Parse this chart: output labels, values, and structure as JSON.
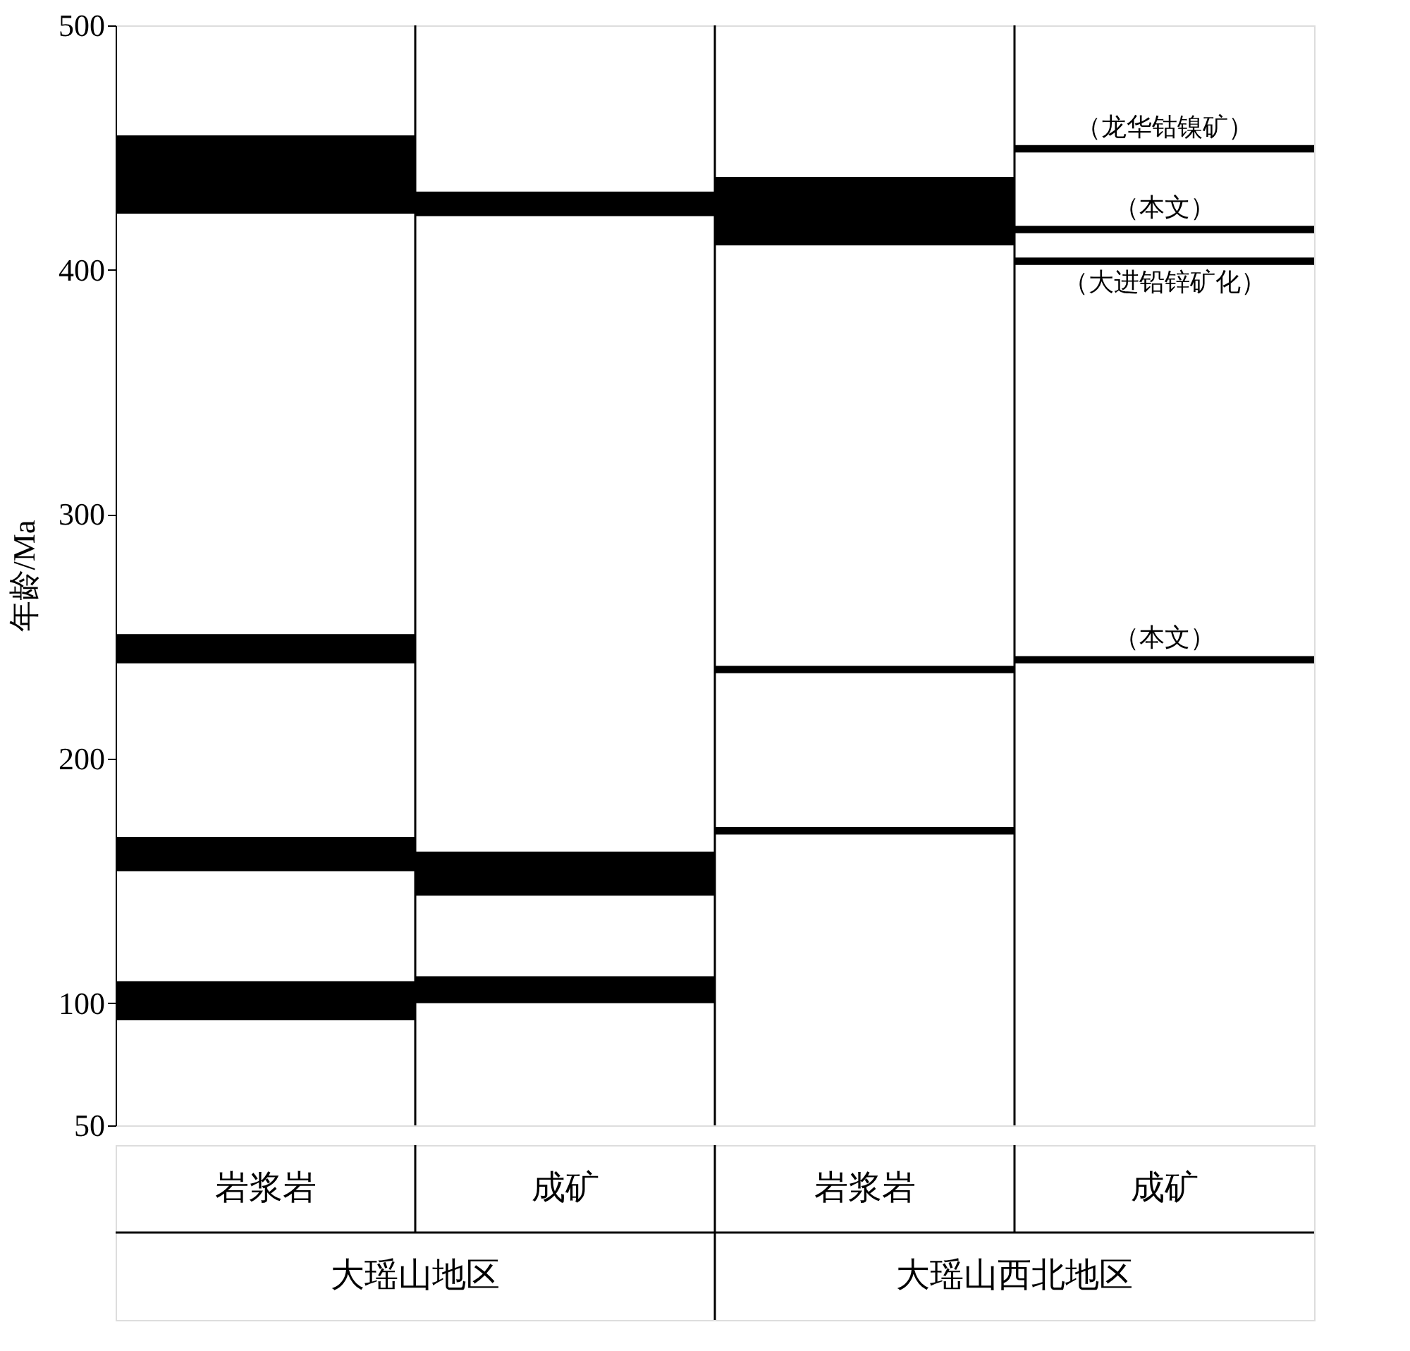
{
  "chart_data": {
    "type": "bar",
    "ylabel": "年龄/Ma",
    "categories": [
      "岩浆岩",
      "成矿",
      "岩浆岩",
      "成矿"
    ],
    "series": [
      {
        "color": "#000000",
        "base": [
          423,
          422,
          410,
          448
        ],
        "values": [
          32,
          10,
          28,
          3
        ]
      },
      {
        "color": "#000000",
        "base": [
          239,
          144,
          235,
          415
        ],
        "values": [
          12,
          18,
          3,
          3
        ]
      },
      {
        "color": "#000000",
        "base": [
          154,
          100,
          169,
          402
        ],
        "values": [
          14,
          11,
          3,
          3
        ]
      },
      {
        "color": "#000000",
        "base": [
          93,
          null,
          null,
          239
        ],
        "values": [
          16,
          null,
          null,
          3
        ]
      }
    ],
    "ylim": [
      50,
      500
    ],
    "yticks": [
      50,
      100,
      200,
      300,
      400,
      500
    ],
    "grid": false,
    "annotations": [
      "（龙华钴镍矿）",
      "（本文）",
      "（大进铅锌矿化）",
      "（本文）",
      "大瑶山地区",
      "大瑶山西北地区"
    ]
  }
}
